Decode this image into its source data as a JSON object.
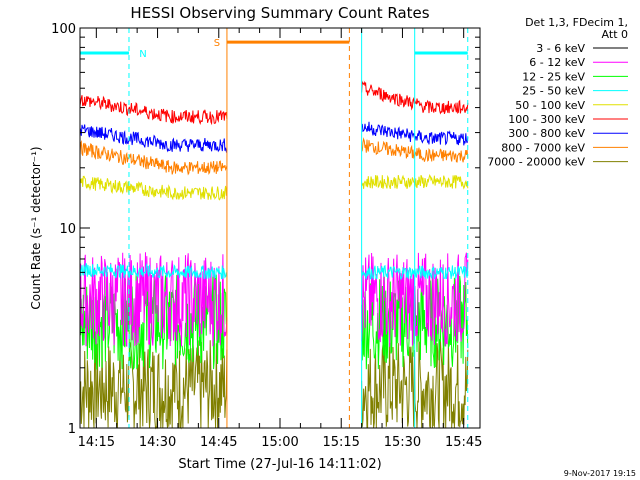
{
  "chart_data": {
    "type": "line",
    "title": "HESSI Observing Summary Count Rates",
    "ylabel": "Count Rate (s⁻¹ detector⁻¹)",
    "xlabel": "Start Time (27-Jul-16 14:11:02)",
    "y_scale": "log",
    "ylim": [
      1,
      100
    ],
    "xlim": [
      "14:11",
      "15:49"
    ],
    "y_ticks": [
      "1",
      "10",
      "100"
    ],
    "x_ticks": [
      "14:15",
      "14:30",
      "14:45",
      "15:00",
      "15:15",
      "15:30",
      "15:45"
    ],
    "legend_header": [
      "Det 1,3, FDecim 1,",
      "Att 0"
    ],
    "legend_position": "right",
    "timestamp": "9-Nov-2017 19:15",
    "markers": [
      {
        "label": "N",
        "color": "#00ffff",
        "start": "14:11",
        "end": "14:23",
        "level": 75
      },
      {
        "label": "S",
        "color": "#ff8000",
        "start": "14:47",
        "end": "15:17",
        "level": 85
      },
      {
        "label": "",
        "color": "#00ffff",
        "start": "15:33",
        "end": "15:46",
        "level": 75
      }
    ],
    "boundaries": [
      {
        "time": "14:23",
        "color": "#00ffff",
        "style": "dashed"
      },
      {
        "time": "14:47",
        "color": "#ff8000",
        "style": "solid"
      },
      {
        "time": "15:17",
        "color": "#ff8000",
        "style": "dashed"
      },
      {
        "time": "15:20",
        "color": "#00ffff",
        "style": "solid"
      },
      {
        "time": "15:33",
        "color": "#00ffff",
        "style": "solid"
      },
      {
        "time": "15:46",
        "color": "#00ffff",
        "style": "dashed"
      }
    ],
    "data_gaps": [
      [
        "14:47",
        "15:20"
      ]
    ],
    "series": [
      {
        "name": "3 - 6 keV",
        "color": "#000000",
        "values": []
      },
      {
        "name": "6 - 12 keV",
        "color": "#ff00ff",
        "values": [
          [
            4.4,
            4.4
          ],
          [
            4.4,
            4.4
          ]
        ]
      },
      {
        "name": "12 - 25 keV",
        "color": "#00ff00",
        "values": [
          [
            3.4,
            3.4
          ],
          [
            3.4,
            3.4
          ]
        ]
      },
      {
        "name": "25 - 50 keV",
        "color": "#00ffff",
        "values": [
          [
            6.2,
            6.0
          ],
          [
            6.0,
            6.0
          ]
        ]
      },
      {
        "name": "50 - 100 keV",
        "color": "#e0e000",
        "values": [
          [
            17,
            15
          ],
          [
            17,
            17
          ]
        ]
      },
      {
        "name": "100 - 300 keV",
        "color": "#ff0000",
        "values": [
          [
            44,
            36
          ],
          [
            50,
            40
          ]
        ]
      },
      {
        "name": "300 - 800 keV",
        "color": "#0000ff",
        "values": [
          [
            31,
            26
          ],
          [
            32,
            28
          ]
        ]
      },
      {
        "name": "800 - 7000 keV",
        "color": "#ff8000",
        "values": [
          [
            25,
            20
          ],
          [
            26,
            23
          ]
        ]
      },
      {
        "name": "7000 - 20000 keV",
        "color": "#808000",
        "values": [
          [
            1.6,
            1.6
          ],
          [
            1.6,
            1.6
          ]
        ]
      }
    ],
    "segments": [
      [
        "14:11",
        "14:47"
      ],
      [
        "15:20",
        "15:46"
      ]
    ]
  }
}
